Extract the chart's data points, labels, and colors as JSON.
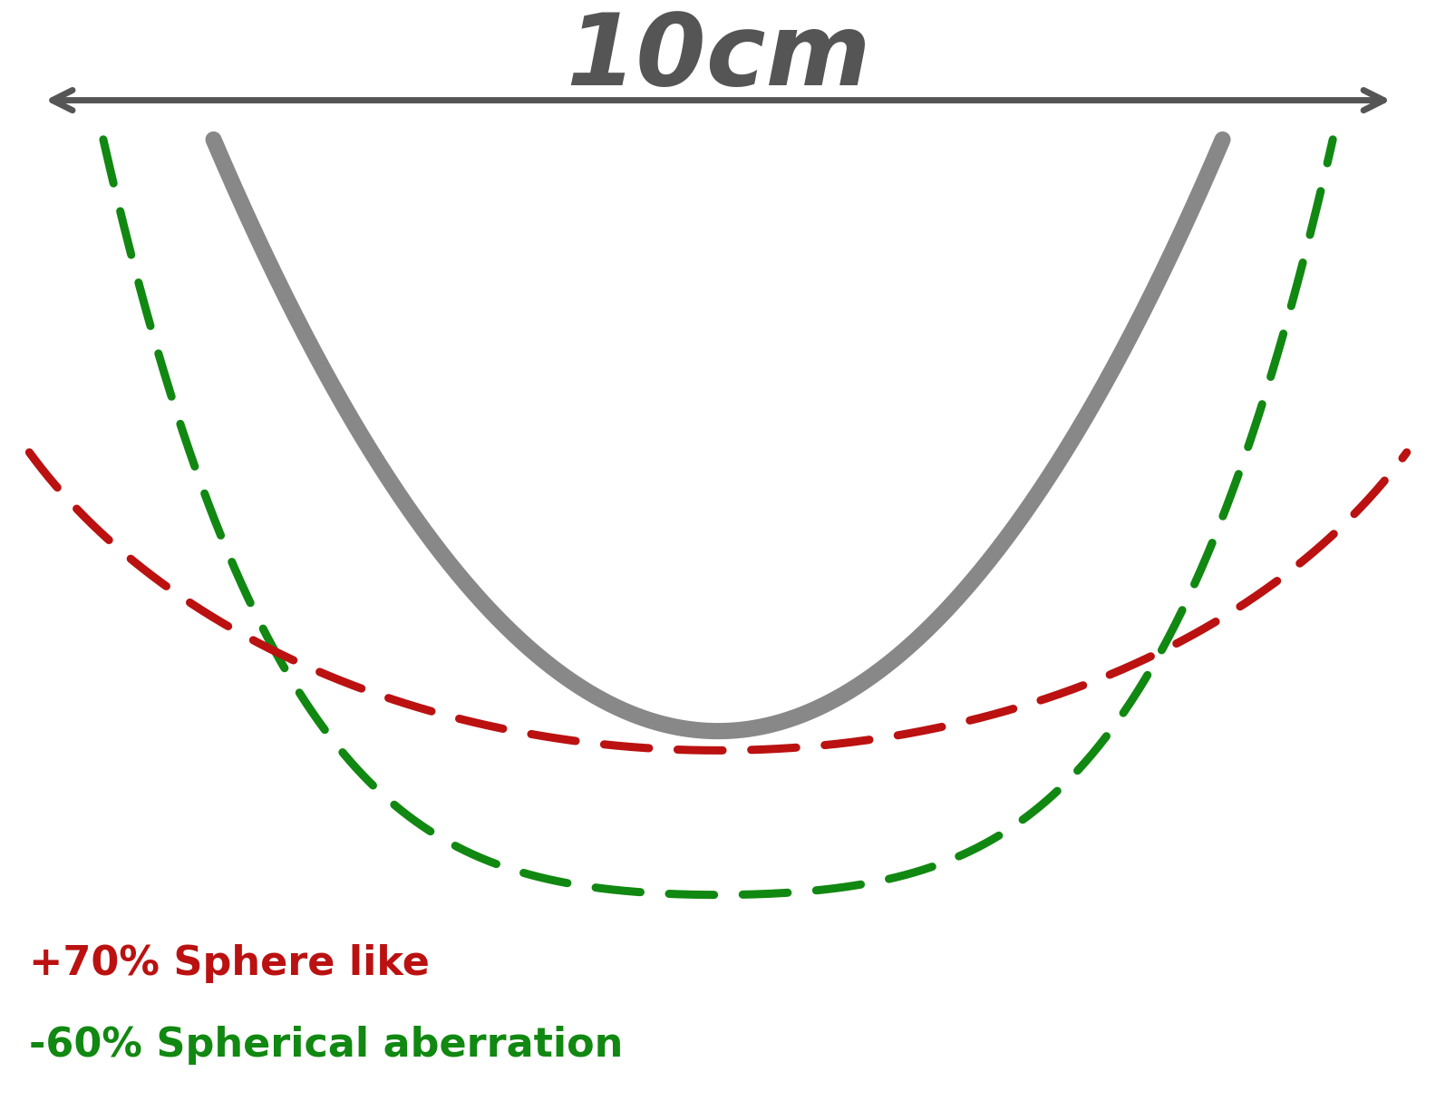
{
  "title": "10cm",
  "title_color": "#555555",
  "title_fontsize": 80,
  "title_fontstyle": "italic",
  "title_fontweight": "bold",
  "arrow_color": "#555555",
  "gray_color": "#888888",
  "red_color": "#bb1111",
  "green_color": "#118811",
  "gray_linewidth": 13,
  "dashed_linewidth": 6.5,
  "label_red": "+70% Sphere like",
  "label_green": "-60% Spherical aberration",
  "label_fontsize": 32,
  "label_red_color": "#bb1111",
  "label_green_color": "#118811",
  "background_color": "#ffffff"
}
